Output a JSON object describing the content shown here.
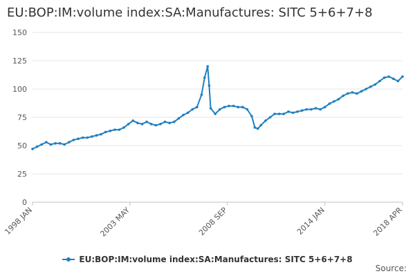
{
  "chart_data": {
    "type": "line",
    "title": "EU:BOP:IM:volume index:SA:Manufactures: SITC 5+6+7+8",
    "xlabel": "",
    "ylabel": "",
    "ylim": [
      0,
      150
    ],
    "yticks": [
      "0",
      "25",
      "50",
      "75",
      "100",
      "125",
      "150"
    ],
    "xticks": [
      "1998 JAN",
      "2003 MAY",
      "2008 SEP",
      "2014 JAN",
      "2018 APR"
    ],
    "x_range": [
      "1998-01",
      "2018-04"
    ],
    "grid": true,
    "legend_position": "bottom",
    "series": [
      {
        "name": "EU:BOP:IM:volume index:SA:Manufactures: SITC 5+6+7+8",
        "color": "#1f7fbf",
        "points": [
          [
            "1998-01",
            47
          ],
          [
            "1998-04",
            49
          ],
          [
            "1998-07",
            51
          ],
          [
            "1998-10",
            53
          ],
          [
            "1999-01",
            51
          ],
          [
            "1999-04",
            52
          ],
          [
            "1999-07",
            52
          ],
          [
            "1999-10",
            51
          ],
          [
            "2000-01",
            53
          ],
          [
            "2000-04",
            55
          ],
          [
            "2000-07",
            56
          ],
          [
            "2000-10",
            57
          ],
          [
            "2001-01",
            57
          ],
          [
            "2001-04",
            58
          ],
          [
            "2001-07",
            59
          ],
          [
            "2001-10",
            60
          ],
          [
            "2002-01",
            62
          ],
          [
            "2002-04",
            63
          ],
          [
            "2002-07",
            64
          ],
          [
            "2002-10",
            64
          ],
          [
            "2003-01",
            66
          ],
          [
            "2003-04",
            69
          ],
          [
            "2003-07",
            72
          ],
          [
            "2003-10",
            70
          ],
          [
            "2004-01",
            69
          ],
          [
            "2004-04",
            71
          ],
          [
            "2004-07",
            69
          ],
          [
            "2004-10",
            68
          ],
          [
            "2005-01",
            69
          ],
          [
            "2005-04",
            71
          ],
          [
            "2005-07",
            70
          ],
          [
            "2005-10",
            71
          ],
          [
            "2006-01",
            74
          ],
          [
            "2006-04",
            77
          ],
          [
            "2006-07",
            79
          ],
          [
            "2006-10",
            82
          ],
          [
            "2007-01",
            84
          ],
          [
            "2007-04",
            95
          ],
          [
            "2007-06",
            110
          ],
          [
            "2007-08",
            120
          ],
          [
            "2007-09",
            103
          ],
          [
            "2007-10",
            83
          ],
          [
            "2008-01",
            78
          ],
          [
            "2008-04",
            82
          ],
          [
            "2008-07",
            84
          ],
          [
            "2008-10",
            85
          ],
          [
            "2009-01",
            85
          ],
          [
            "2009-04",
            84
          ],
          [
            "2009-07",
            84
          ],
          [
            "2009-10",
            82
          ],
          [
            "2010-01",
            76
          ],
          [
            "2010-03",
            66
          ],
          [
            "2010-05",
            65
          ],
          [
            "2010-07",
            68
          ],
          [
            "2010-10",
            72
          ],
          [
            "2011-01",
            75
          ],
          [
            "2011-04",
            78
          ],
          [
            "2011-07",
            78
          ],
          [
            "2011-10",
            78
          ],
          [
            "2012-01",
            80
          ],
          [
            "2012-04",
            79
          ],
          [
            "2012-07",
            80
          ],
          [
            "2012-10",
            81
          ],
          [
            "2013-01",
            82
          ],
          [
            "2013-04",
            82
          ],
          [
            "2013-07",
            83
          ],
          [
            "2013-10",
            82
          ],
          [
            "2014-01",
            84
          ],
          [
            "2014-04",
            87
          ],
          [
            "2014-07",
            89
          ],
          [
            "2014-10",
            91
          ],
          [
            "2015-01",
            94
          ],
          [
            "2015-04",
            96
          ],
          [
            "2015-07",
            97
          ],
          [
            "2015-10",
            96
          ],
          [
            "2016-01",
            98
          ],
          [
            "2016-04",
            100
          ],
          [
            "2016-07",
            102
          ],
          [
            "2016-10",
            104
          ],
          [
            "2017-01",
            107
          ],
          [
            "2017-04",
            110
          ],
          [
            "2017-07",
            111
          ],
          [
            "2017-10",
            109
          ],
          [
            "2018-01",
            107
          ],
          [
            "2018-04",
            111
          ]
        ]
      }
    ]
  },
  "source_label": "Source:"
}
